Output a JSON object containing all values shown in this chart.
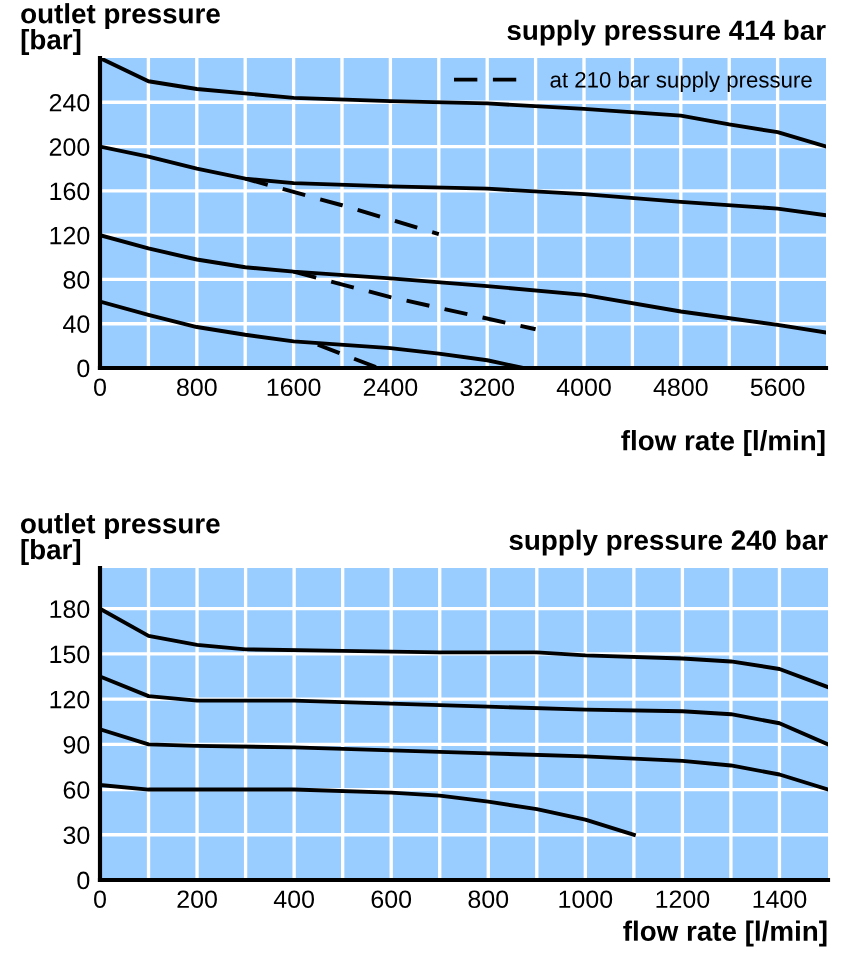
{
  "chart_data": [
    {
      "type": "line",
      "subtitle": "supply pressure 414 bar",
      "ylabel": "outlet pressure\n[bar]",
      "xlabel": "flow rate [l/min]",
      "xlim": [
        0,
        6000
      ],
      "xticks": [
        0,
        800,
        1600,
        2400,
        3200,
        4000,
        4800,
        5600
      ],
      "ylim": [
        0,
        280
      ],
      "yticks": [
        0,
        40,
        80,
        120,
        160,
        200,
        240
      ],
      "grid": true,
      "legend": "top right",
      "series": [
        {
          "color": "#000000",
          "line_style": "solid",
          "x": [
            0,
            400,
            800,
            1600,
            2400,
            3200,
            4000,
            4800,
            5200,
            5600,
            6000
          ],
          "values": [
            280,
            259,
            252,
            244,
            241,
            239,
            234,
            228,
            220,
            213,
            200
          ]
        },
        {
          "color": "#000000",
          "line_style": "solid",
          "x": [
            0,
            400,
            800,
            1200,
            1600,
            2400,
            3200,
            4000,
            4800,
            5600,
            6000
          ],
          "values": [
            200,
            191,
            180,
            171,
            167,
            164,
            162,
            157,
            150,
            144,
            138
          ]
        },
        {
          "color": "#000000",
          "line_style": "solid",
          "x": [
            0,
            400,
            800,
            1200,
            1600,
            2400,
            3200,
            4000,
            4800,
            5600,
            6000
          ],
          "values": [
            120,
            108,
            98,
            91,
            87,
            81,
            74,
            66,
            51,
            39,
            32
          ]
        },
        {
          "color": "#000000",
          "line_style": "solid",
          "x": [
            0,
            400,
            800,
            1200,
            1600,
            2400,
            2800,
            3200,
            3500
          ],
          "values": [
            60,
            48,
            37,
            30,
            24,
            18,
            13,
            7,
            0
          ]
        },
        {
          "name": "at 210 bar supply pressure",
          "color": "#000000",
          "line_style": "dashed",
          "x": [
            1200,
            2000,
            2800
          ],
          "values": [
            171,
            147,
            121
          ]
        },
        {
          "color": "#000000",
          "line_style": "dashed",
          "x": [
            1600,
            2400,
            3600
          ],
          "values": [
            87,
            64,
            35
          ]
        },
        {
          "color": "#000000",
          "line_style": "dashed",
          "x": [
            1800,
            2300
          ],
          "values": [
            21,
            0
          ]
        }
      ]
    },
    {
      "type": "line",
      "subtitle": "supply pressure 240 bar",
      "ylabel": "outlet pressure\n[bar]",
      "xlabel": "flow rate [l/min]",
      "xlim": [
        0,
        1500
      ],
      "xticks": [
        0,
        200,
        400,
        600,
        800,
        1000,
        1200,
        1400
      ],
      "ylim": [
        0,
        207
      ],
      "yticks": [
        0,
        30,
        60,
        90,
        120,
        150,
        180
      ],
      "grid": true,
      "series": [
        {
          "color": "#000000",
          "line_style": "solid",
          "x": [
            0,
            100,
            200,
            300,
            500,
            700,
            900,
            1000,
            1200,
            1300,
            1400,
            1500
          ],
          "values": [
            180,
            162,
            156,
            153,
            152,
            151,
            151,
            149,
            147,
            145,
            140,
            128
          ]
        },
        {
          "color": "#000000",
          "line_style": "solid",
          "x": [
            0,
            100,
            200,
            400,
            600,
            800,
            1000,
            1200,
            1300,
            1400,
            1500
          ],
          "values": [
            135,
            122,
            119,
            119,
            117,
            115,
            113,
            112,
            110,
            104,
            90
          ]
        },
        {
          "color": "#000000",
          "line_style": "solid",
          "x": [
            0,
            100,
            200,
            400,
            600,
            800,
            1000,
            1200,
            1300,
            1400,
            1500
          ],
          "values": [
            100,
            90,
            89,
            88,
            86,
            84,
            82,
            79,
            76,
            70,
            60
          ]
        },
        {
          "color": "#000000",
          "line_style": "solid",
          "x": [
            0,
            100,
            400,
            600,
            700,
            800,
            900,
            1000,
            1100
          ],
          "values": [
            63,
            60,
            60,
            58,
            56,
            52,
            47,
            40,
            30
          ]
        }
      ]
    }
  ]
}
